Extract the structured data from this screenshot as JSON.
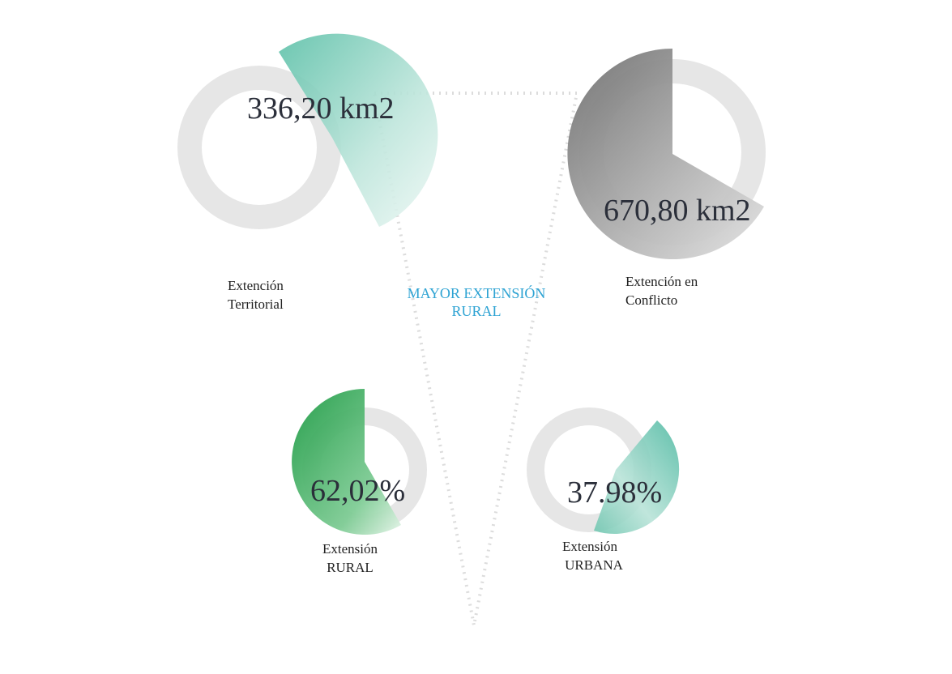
{
  "title": [
    "MAYOR EXTENSIÓN",
    "RURAL"
  ],
  "items": [
    {
      "value": "336,20 km2",
      "label": [
        "Extención",
        "Territorial"
      ]
    },
    {
      "value": "670,80 km2",
      "label": [
        "Extención en",
        "Conflicto"
      ]
    },
    {
      "value": "62,02%",
      "label": [
        "Extensión",
        "RURAL"
      ]
    },
    {
      "value": "37.98%",
      "label": [
        "Extensión",
        "URBANA"
      ]
    }
  ]
}
